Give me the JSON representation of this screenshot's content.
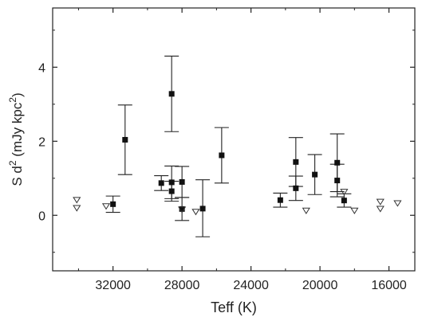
{
  "chart_data": {
    "type": "scatter",
    "title": "",
    "xlabel": "Teff (K)",
    "ylabel_parts": [
      "S d",
      "2",
      " (mJy kpc",
      "2",
      ")"
    ],
    "xlim": [
      35500,
      14500
    ],
    "ylim": [
      -1.5,
      5.6
    ],
    "x_reversed": true,
    "grid": false,
    "xticks": [
      32000,
      28000,
      24000,
      20000,
      16000
    ],
    "xtick_labels": [
      "32000",
      "28000",
      "24000",
      "20000",
      "16000"
    ],
    "yticks": [
      0,
      2,
      4
    ],
    "ytick_labels": [
      "0",
      "2",
      "4"
    ],
    "series": [
      {
        "marker": "filled-square",
        "points": [
          {
            "x": 32000,
            "y": 0.3,
            "lo": 0.08,
            "hi": 0.52
          },
          {
            "x": 31300,
            "y": 2.04,
            "lo": 1.1,
            "hi": 2.98
          },
          {
            "x": 29200,
            "y": 0.87,
            "lo": 0.67,
            "hi": 1.07
          },
          {
            "x": 28600,
            "y": 0.89,
            "lo": 0.45,
            "hi": 1.33
          },
          {
            "x": 28600,
            "y": 0.65,
            "lo": 0.38,
            "hi": 0.92
          },
          {
            "x": 28600,
            "y": 3.28,
            "lo": 2.26,
            "hi": 4.3
          },
          {
            "x": 28000,
            "y": 0.9,
            "lo": 0.48,
            "hi": 1.32
          },
          {
            "x": 28000,
            "y": 0.17,
            "lo": -0.14,
            "hi": 0.48
          },
          {
            "x": 26800,
            "y": 0.18,
            "lo": -0.58,
            "hi": 0.96
          },
          {
            "x": 25700,
            "y": 1.62,
            "lo": 0.87,
            "hi": 2.37
          },
          {
            "x": 22300,
            "y": 0.41,
            "lo": 0.22,
            "hi": 0.6
          },
          {
            "x": 21400,
            "y": 1.44,
            "lo": 0.78,
            "hi": 2.1
          },
          {
            "x": 21400,
            "y": 0.73,
            "lo": 0.4,
            "hi": 1.06
          },
          {
            "x": 20300,
            "y": 1.1,
            "lo": 0.56,
            "hi": 1.64
          },
          {
            "x": 19000,
            "y": 1.42,
            "lo": 0.64,
            "hi": 2.2
          },
          {
            "x": 19000,
            "y": 0.94,
            "lo": 0.5,
            "hi": 1.38
          },
          {
            "x": 18600,
            "y": 0.4,
            "lo": 0.22,
            "hi": 0.58
          }
        ]
      },
      {
        "marker": "open-triangle-down",
        "points": [
          {
            "x": 34100,
            "y": 0.42
          },
          {
            "x": 34100,
            "y": 0.2
          },
          {
            "x": 32400,
            "y": 0.25
          },
          {
            "x": 28000,
            "y": 0.16
          },
          {
            "x": 27200,
            "y": 0.1
          },
          {
            "x": 20800,
            "y": 0.13
          },
          {
            "x": 18600,
            "y": 0.64
          },
          {
            "x": 18000,
            "y": 0.13
          },
          {
            "x": 16500,
            "y": 0.37
          },
          {
            "x": 16500,
            "y": 0.18
          },
          {
            "x": 15500,
            "y": 0.33
          }
        ]
      }
    ]
  }
}
